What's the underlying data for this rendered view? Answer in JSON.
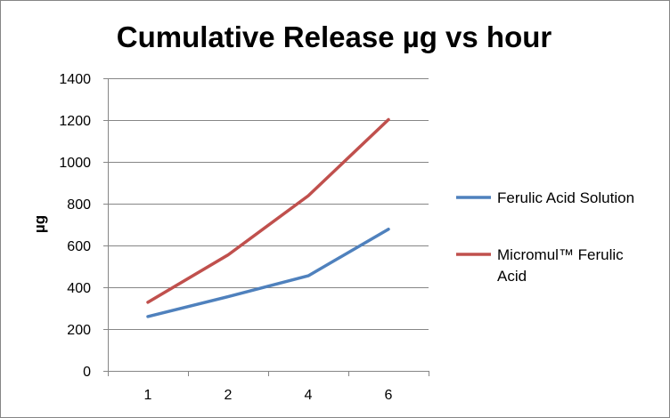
{
  "chart_data": {
    "type": "line",
    "title": "Cumulative Release µg vs hour",
    "xlabel": "",
    "ylabel": "µg",
    "categories": [
      "1",
      "2",
      "4",
      "6"
    ],
    "ylim": [
      0,
      1400
    ],
    "yticks": [
      0,
      200,
      400,
      600,
      800,
      1000,
      1200,
      1400
    ],
    "grid": true,
    "legend_position": "right",
    "series": [
      {
        "name": "Ferulic Acid Solution",
        "legend_lines": [
          "Ferulic Acid Solution"
        ],
        "color": "#4F81BD",
        "values": [
          260,
          355,
          455,
          678
        ]
      },
      {
        "name": "Micromul™ Ferulic Acid",
        "legend_lines": [
          "Micromul™ Ferulic",
          "Acid"
        ],
        "color": "#C0504D",
        "values": [
          328,
          555,
          838,
          1202
        ]
      }
    ]
  }
}
